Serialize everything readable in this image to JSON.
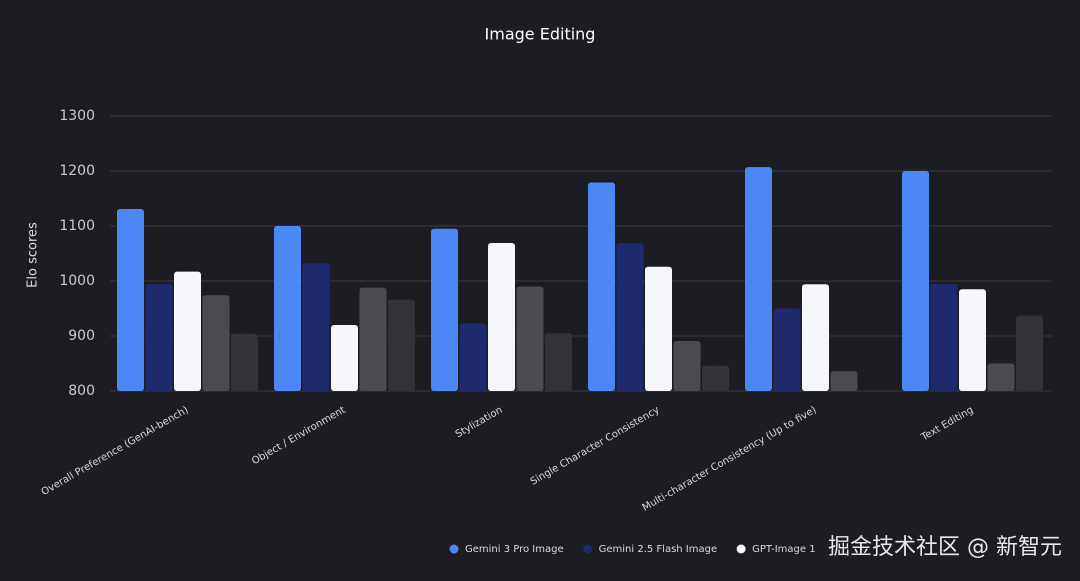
{
  "chart_data": {
    "type": "bar",
    "title": "Image Editing",
    "y_label": "Elo scores",
    "categories": [
      "Overall Preference (GenAI-bench)",
      "Object / Environment",
      "Stylization",
      "Single Character Consistency",
      "Multi-character Consistency (Up to five)",
      "Text Editing"
    ],
    "series": [
      {
        "name": "Gemini 3 Pro Image",
        "color": "#4d87f6",
        "values": [
          1131,
          1100,
          1095,
          1179,
          1207,
          1200
        ]
      },
      {
        "name": "Gemini 2.5 Flash Image",
        "color": "#1f2a6e",
        "values": [
          995,
          1032,
          923,
          1069,
          950,
          995
        ]
      },
      {
        "name": "GPT-Image 1",
        "color": "#f6f7fa",
        "values": [
          1017,
          920,
          1069,
          1026,
          994,
          985
        ]
      },
      {
        "color": "#4a4b50",
        "values": [
          974,
          988,
          990,
          891,
          836,
          850
        ]
      },
      {
        "color": "#323337",
        "values": [
          904,
          966,
          905,
          846,
          null,
          937
        ]
      }
    ],
    "ylim": [
      800,
      1300
    ],
    "yticks": [
      800,
      900,
      1000,
      1100,
      1200,
      1300
    ],
    "grid": true,
    "watermark": "掘金技术社区 @ 新智元"
  }
}
